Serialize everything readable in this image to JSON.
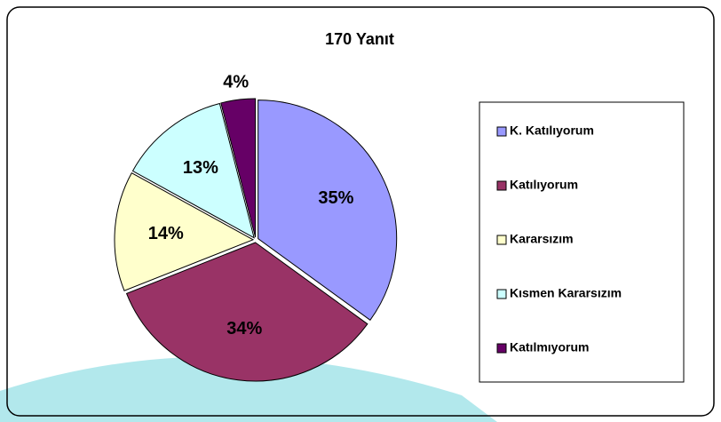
{
  "chart_data": {
    "type": "pie",
    "title": "170 Yanıt",
    "categories": [
      "K. Katılıyorum",
      "Katılıyorum",
      "Kararsızım",
      "Kısmen Kararsızım",
      "Katılmıyorum"
    ],
    "values": [
      35,
      34,
      14,
      13,
      4
    ],
    "value_labels": [
      "35%",
      "34%",
      "14%",
      "13%",
      "4%"
    ],
    "colors": [
      "#9999ff",
      "#993366",
      "#ffffcc",
      "#ccffff",
      "#660066"
    ],
    "legend": "right"
  }
}
